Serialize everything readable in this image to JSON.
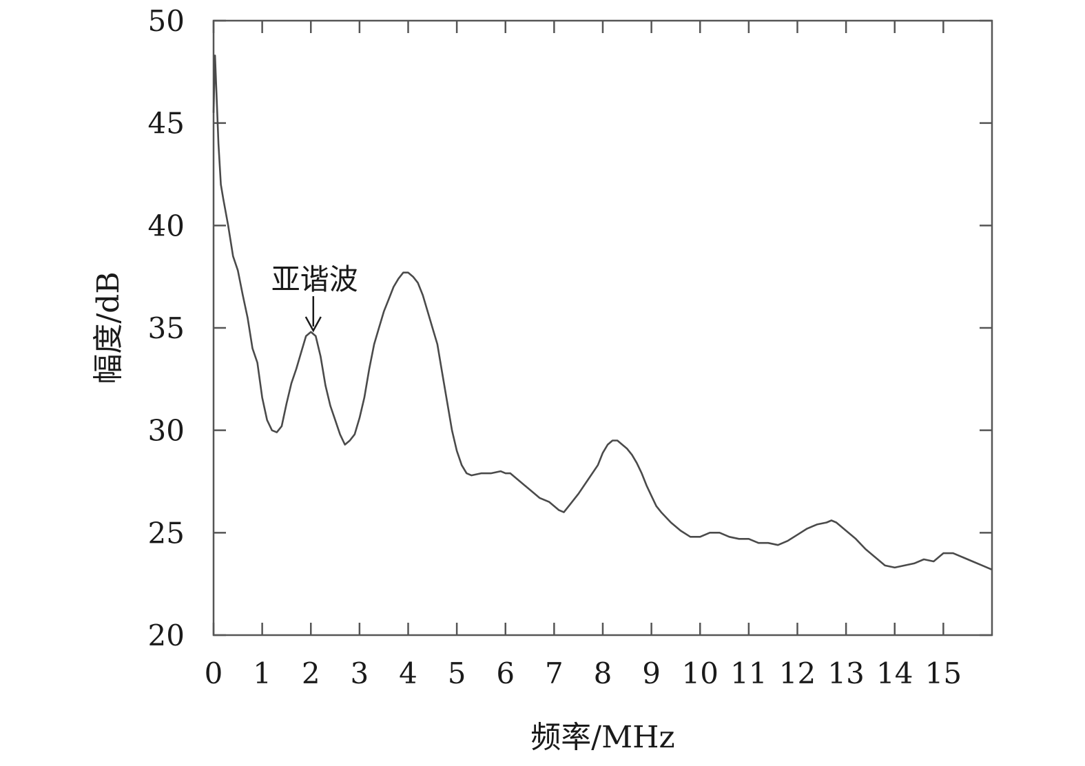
{
  "chart_data": {
    "type": "line",
    "xlabel": "频率/MHz",
    "ylabel": "幅度/dB",
    "xlim": [
      0,
      16
    ],
    "ylim": [
      20,
      50
    ],
    "x_ticks": [
      0,
      1,
      2,
      3,
      4,
      5,
      6,
      7,
      8,
      9,
      10,
      11,
      12,
      13,
      14,
      15
    ],
    "y_ticks": [
      20,
      25,
      30,
      35,
      40,
      45,
      50
    ],
    "grid": false,
    "line_color": "#4a4a4a",
    "annotations": [
      {
        "text": "亚谐波",
        "x": 2.05,
        "y": 34.8,
        "arrow": "down"
      }
    ],
    "series": [
      {
        "x": [
          0,
          0.03,
          0.06,
          0.1,
          0.15,
          0.2,
          0.3,
          0.4,
          0.5,
          0.6,
          0.7,
          0.8,
          0.9,
          1.0,
          1.1,
          1.2,
          1.3,
          1.4,
          1.5,
          1.6,
          1.7,
          1.8,
          1.9,
          2.0,
          2.05,
          2.1,
          2.2,
          2.3,
          2.4,
          2.5,
          2.6,
          2.7,
          2.8,
          2.9,
          3.0,
          3.1,
          3.2,
          3.3,
          3.4,
          3.5,
          3.6,
          3.7,
          3.8,
          3.9,
          4.0,
          4.1,
          4.2,
          4.3,
          4.4,
          4.5,
          4.6,
          4.7,
          4.8,
          4.9,
          5.0,
          5.1,
          5.2,
          5.3,
          5.5,
          5.7,
          5.9,
          6.0,
          6.1,
          6.3,
          6.5,
          6.7,
          6.9,
          7.1,
          7.2,
          7.3,
          7.5,
          7.7,
          7.9,
          8.0,
          8.1,
          8.2,
          8.3,
          8.4,
          8.5,
          8.6,
          8.7,
          8.8,
          8.9,
          9.0,
          9.1,
          9.2,
          9.4,
          9.6,
          9.8,
          10.0,
          10.2,
          10.4,
          10.6,
          10.8,
          11.0,
          11.2,
          11.4,
          11.6,
          11.8,
          12.0,
          12.2,
          12.4,
          12.6,
          12.7,
          12.8,
          13.0,
          13.2,
          13.4,
          13.6,
          13.8,
          14.0,
          14.2,
          14.4,
          14.6,
          14.8,
          15.0,
          15.2,
          15.4,
          15.6,
          15.8,
          16.0
        ],
        "y": [
          45.5,
          48.3,
          46.5,
          44.0,
          42.0,
          41.3,
          40.0,
          38.5,
          37.8,
          36.6,
          35.5,
          34.0,
          33.3,
          31.6,
          30.5,
          30.0,
          29.9,
          30.2,
          31.3,
          32.3,
          33.0,
          33.8,
          34.6,
          34.8,
          34.7,
          34.6,
          33.6,
          32.2,
          31.2,
          30.5,
          29.8,
          29.3,
          29.5,
          29.8,
          30.6,
          31.6,
          33.0,
          34.2,
          35.0,
          35.8,
          36.4,
          37.0,
          37.4,
          37.7,
          37.7,
          37.5,
          37.2,
          36.6,
          35.8,
          35.0,
          34.2,
          32.8,
          31.4,
          30.0,
          29.0,
          28.3,
          27.9,
          27.8,
          27.9,
          27.9,
          28.0,
          27.9,
          27.9,
          27.5,
          27.1,
          26.7,
          26.5,
          26.1,
          26.0,
          26.3,
          26.9,
          27.6,
          28.3,
          28.9,
          29.3,
          29.5,
          29.5,
          29.3,
          29.1,
          28.8,
          28.4,
          27.9,
          27.3,
          26.8,
          26.3,
          26.0,
          25.5,
          25.1,
          24.8,
          24.8,
          25.0,
          25.0,
          24.8,
          24.7,
          24.7,
          24.5,
          24.5,
          24.4,
          24.6,
          24.9,
          25.2,
          25.4,
          25.5,
          25.6,
          25.5,
          25.1,
          24.7,
          24.2,
          23.8,
          23.4,
          23.3,
          23.4,
          23.5,
          23.7,
          23.6,
          24.0,
          24.0,
          23.8,
          23.6,
          23.4,
          23.2
        ]
      }
    ]
  }
}
